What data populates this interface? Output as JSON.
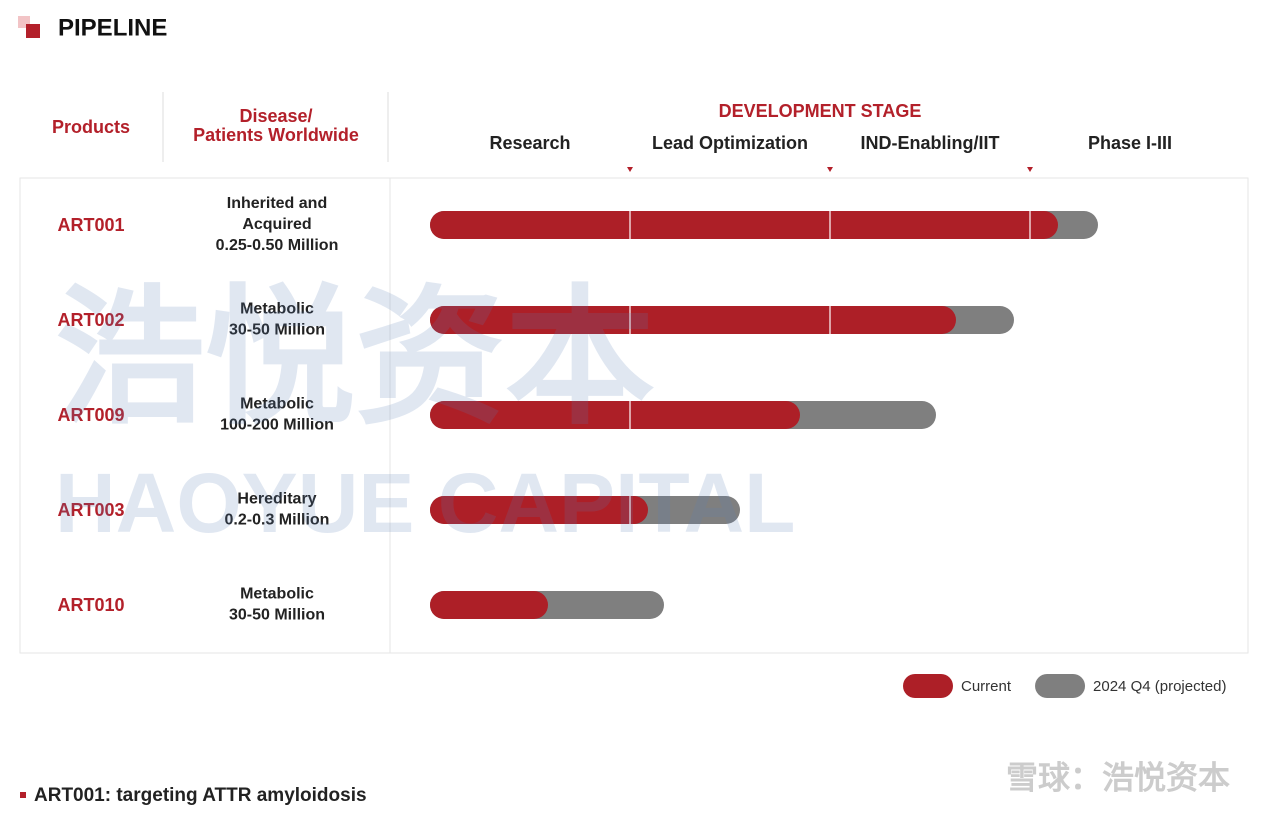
{
  "chart_data": {
    "type": "bar",
    "title": "PIPELINE",
    "header_products": "Products",
    "header_disease": [
      "Disease/",
      "Patients Worldwide"
    ],
    "header_stage": "DEVELOPMENT STAGE",
    "stages": [
      "Research",
      "Lead Optimization",
      "IND-Enabling/IIT",
      "Phase I-III"
    ],
    "categories": [
      "ART001",
      "ART002",
      "ART009",
      "ART003",
      "ART010"
    ],
    "diseases": [
      [
        "Inherited and",
        "Acquired",
        "0.25-0.50 Million"
      ],
      [
        "Metabolic",
        "30-50 Million"
      ],
      [
        "Metabolic",
        "100-200 Million"
      ],
      [
        "Hereditary",
        "0.2-0.3 Million"
      ],
      [
        "Metabolic",
        "30-50 Million"
      ]
    ],
    "xlim": [
      0,
      4
    ],
    "series": [
      {
        "name": "Current",
        "color": "#ad1f27",
        "values": [
          3.14,
          2.63,
          1.85,
          1.09,
          0.59
        ]
      },
      {
        "name": "2024 Q4 (projected)",
        "color": "#7f7f7f",
        "values": [
          0.2,
          0.29,
          0.68,
          0.46,
          0.58
        ]
      }
    ],
    "footnote": "ART001: targeting ATTR amyloidosis",
    "watermark": [
      "浩悦资本",
      "HAOYUE CAPITAL"
    ],
    "source_mark": "雪球：浩悦资本"
  }
}
